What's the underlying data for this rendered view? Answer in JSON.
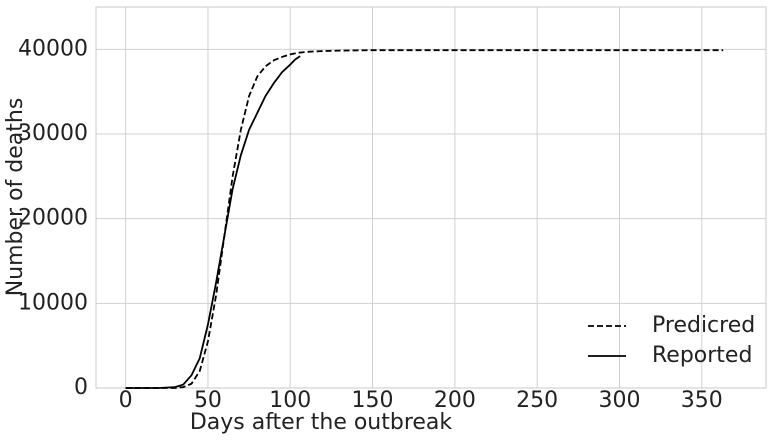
{
  "chart_data": {
    "type": "line",
    "xlabel": "Days after the outbreak",
    "ylabel": "Number of deaths",
    "xlim": [
      -18,
      389
    ],
    "ylim": [
      0,
      45000
    ],
    "xticks": [
      0,
      50,
      100,
      150,
      200,
      250,
      300,
      350
    ],
    "yticks": [
      0,
      10000,
      20000,
      30000,
      40000
    ],
    "grid": true,
    "legend": "lower right",
    "series": [
      {
        "name": "Predicred",
        "color": "#000000",
        "style": "dashed",
        "x": [
          0,
          10,
          20,
          30,
          35,
          40,
          45,
          50,
          55,
          60,
          65,
          70,
          75,
          80,
          85,
          90,
          95,
          100,
          105,
          110,
          120,
          130,
          150,
          200,
          250,
          300,
          363
        ],
        "values": [
          0,
          0,
          0,
          0,
          100,
          500,
          2000,
          5500,
          11000,
          18000,
          25000,
          30500,
          34500,
          36800,
          38000,
          38700,
          39100,
          39400,
          39600,
          39700,
          39800,
          39850,
          39900,
          39900,
          39900,
          39900,
          39900
        ]
      },
      {
        "name": "Reported",
        "color": "#000000",
        "style": "solid",
        "x": [
          0,
          10,
          20,
          30,
          35,
          40,
          45,
          50,
          55,
          60,
          65,
          70,
          75,
          80,
          85,
          90,
          95,
          100,
          103,
          106
        ],
        "values": [
          0,
          0,
          0,
          100,
          400,
          1500,
          3500,
          7500,
          12500,
          18000,
          23500,
          27500,
          30500,
          32500,
          34500,
          36000,
          37300,
          38200,
          38800,
          39200
        ]
      }
    ]
  }
}
